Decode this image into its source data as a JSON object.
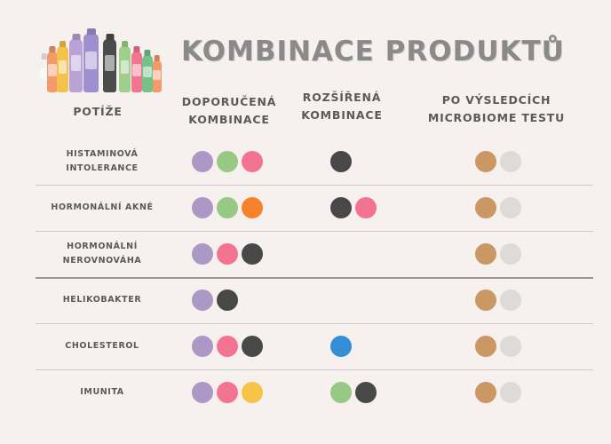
{
  "title": "KOMBINACE PRODUKTŮ",
  "columns": {
    "problems": "POTÍŽE",
    "recommended": "DOPORUČENÁ KOMBINACE",
    "extended": "ROZŠÍŘENÁ KOMBINACE",
    "microbiome": "PO VÝSLEDCÍCH MICROBIOME TESTU"
  },
  "colors": {
    "purple": "#ab98c4",
    "green": "#98c984",
    "pink": "#f27490",
    "dark": "#484848",
    "orange": "#f6822c",
    "blue": "#358fd7",
    "yellow": "#f6c446",
    "tan": "#c99863",
    "light": "#dddbd9"
  },
  "bottle_colors": [
    "#f2f2f2",
    "#f39a6b",
    "#f3c24b",
    "#b9a3d6",
    "#9e8fd0",
    "#4b4b4b",
    "#9ecf8c",
    "#f27490",
    "#74c18a",
    "#f39a6b"
  ],
  "rows": [
    {
      "label": "HISTAMINOVÁ INTOLERANCE",
      "recommended": [
        "purple",
        "green",
        "pink"
      ],
      "extended": [
        "dark"
      ],
      "microbiome": [
        "tan",
        "light"
      ]
    },
    {
      "label": "HORMONÁLNÍ AKNÉ",
      "recommended": [
        "purple",
        "green",
        "orange"
      ],
      "extended": [
        "dark",
        "pink"
      ],
      "microbiome": [
        "tan",
        "light"
      ]
    },
    {
      "label": "HORMONÁLNÍ NEROVNOVÁHA",
      "recommended": [
        "purple",
        "pink",
        "dark"
      ],
      "extended": [],
      "microbiome": [
        "tan",
        "light"
      ]
    },
    {
      "label": "HELIKOBAKTER",
      "recommended": [
        "purple",
        "dark"
      ],
      "extended": [],
      "microbiome": [
        "tan",
        "light"
      ]
    },
    {
      "label": "CHOLESTEROL",
      "recommended": [
        "purple",
        "pink",
        "dark"
      ],
      "extended": [
        "blue"
      ],
      "microbiome": [
        "tan",
        "light"
      ]
    },
    {
      "label": "IMUNITA",
      "recommended": [
        "purple",
        "pink",
        "yellow"
      ],
      "extended": [
        "green",
        "dark"
      ],
      "microbiome": [
        "tan",
        "light"
      ]
    }
  ]
}
